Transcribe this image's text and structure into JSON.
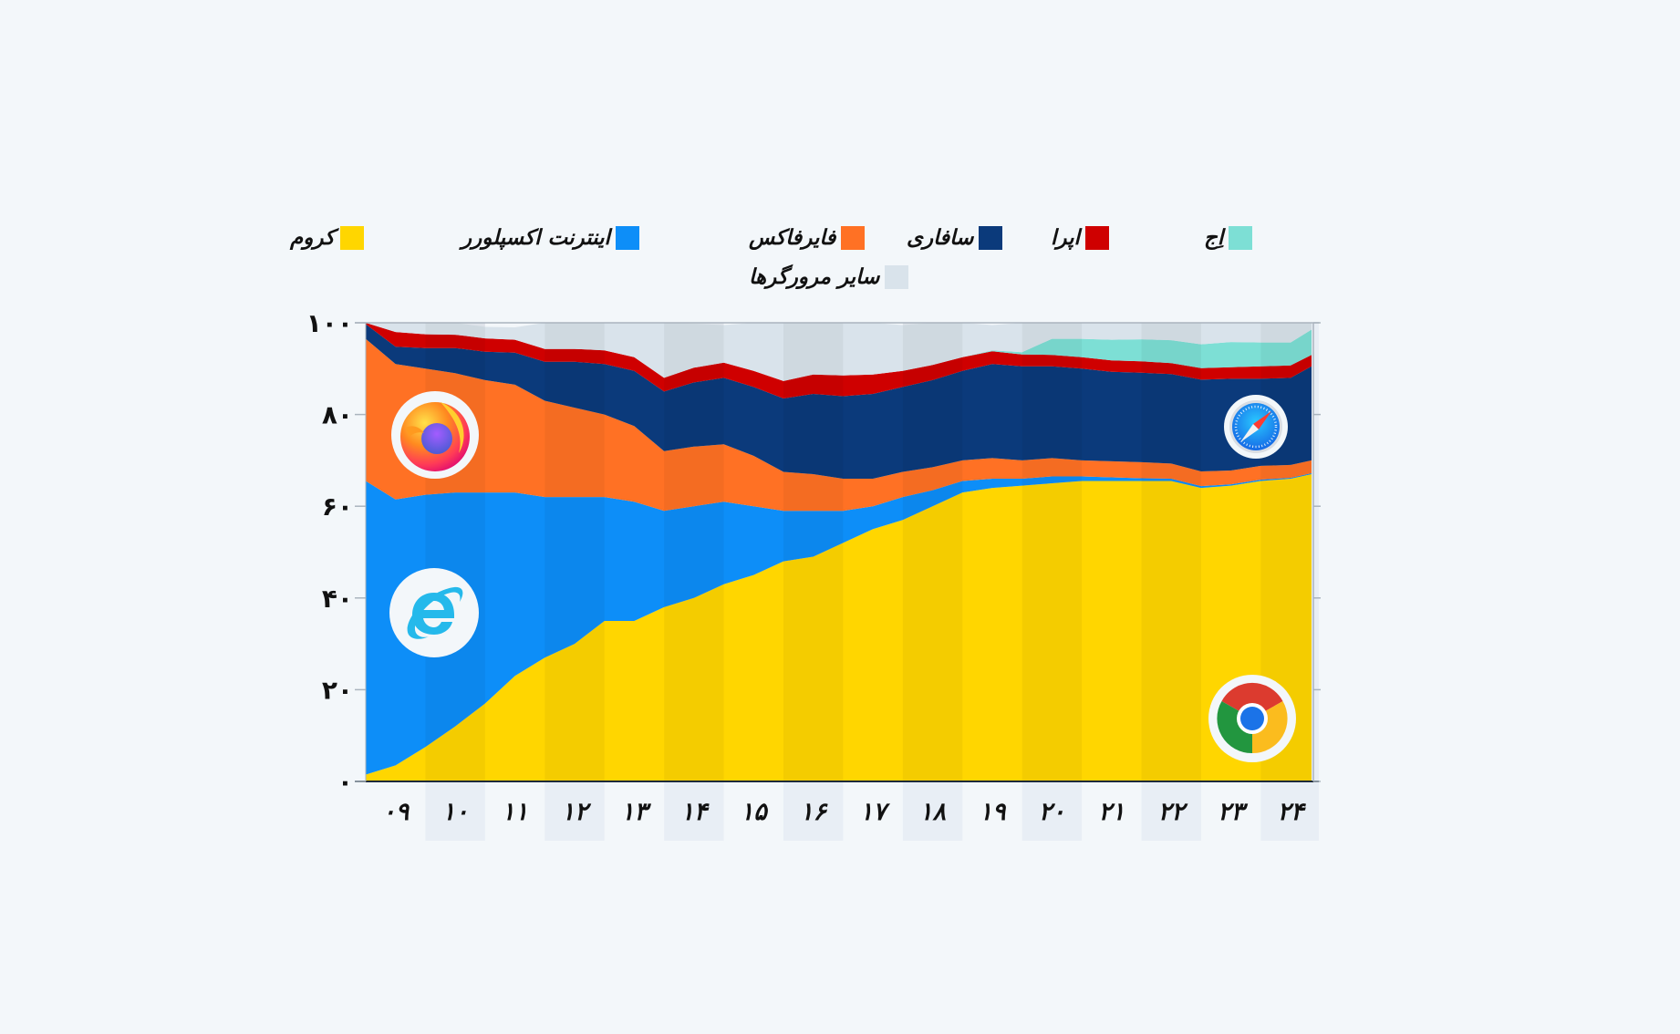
{
  "chart_data": {
    "type": "area",
    "stacked": true,
    "title": "",
    "xlabel": "",
    "ylabel": "",
    "ylim": [
      0,
      100
    ],
    "yticks": [
      "۰",
      "۲۰",
      "۴۰",
      "۶۰",
      "۸۰",
      "۱۰۰"
    ],
    "ytick_values": [
      0,
      20,
      40,
      60,
      80,
      100
    ],
    "xticks": [
      "۰۹",
      "۱۰",
      "۱۱",
      "۱۲",
      "۱۳",
      "۱۴",
      "۱۵",
      "۱۶",
      "۱۷",
      "۱۸",
      "۱۹",
      "۲۰",
      "۲۱",
      "۲۲",
      "۲۳",
      "۲۴"
    ],
    "x": [
      2009.0,
      2009.5,
      2010.0,
      2010.5,
      2011.0,
      2011.5,
      2012.0,
      2012.5,
      2013.0,
      2013.5,
      2014.0,
      2014.5,
      2015.0,
      2015.5,
      2016.0,
      2016.5,
      2017.0,
      2017.5,
      2018.0,
      2018.5,
      2019.0,
      2019.5,
      2020.0,
      2020.5,
      2021.0,
      2021.5,
      2022.0,
      2022.5,
      2023.0,
      2023.5,
      2024.0,
      2024.5,
      2024.85
    ],
    "x_range": [
      2009.0,
      2024.85
    ],
    "legend_position": "top",
    "grid": false,
    "series": [
      {
        "name": "کروم",
        "key": "chrome",
        "color": "#ffd600",
        "values": [
          1.5,
          3.5,
          7.5,
          12,
          17,
          23,
          27,
          30,
          35,
          35,
          38,
          40,
          43,
          45,
          48,
          49,
          52,
          55,
          57,
          60,
          63,
          64,
          64.5,
          65,
          65.5,
          65.5,
          65.5,
          65.5,
          64,
          64.5,
          65.5,
          66,
          67
        ]
      },
      {
        "name": "اینترنت اکسپلورر",
        "key": "ie",
        "color": "#0d8ef8",
        "values": [
          64,
          58,
          55,
          51,
          46,
          40,
          35,
          32,
          27,
          26,
          21,
          20,
          18,
          15,
          11,
          10,
          7,
          5,
          5,
          3.5,
          2.5,
          2,
          1.5,
          1.5,
          1,
          0.8,
          0.6,
          0.5,
          0.4,
          0.3,
          0.3,
          0.2,
          0.2
        ]
      },
      {
        "name": "فایرفاکس",
        "key": "firefox",
        "color": "#ff7124",
        "values": [
          31,
          29.5,
          27.5,
          26,
          24.5,
          23.5,
          21,
          19.5,
          18,
          16.5,
          13,
          13,
          12.5,
          11,
          8.5,
          8,
          7,
          6,
          5.5,
          5,
          4.5,
          4.5,
          4,
          4,
          3.5,
          3.5,
          3.5,
          3.3,
          3.2,
          3,
          3,
          2.8,
          2.8
        ]
      },
      {
        "name": "سافاری",
        "key": "safari",
        "color": "#0b3a7b",
        "values": [
          3.2,
          3.8,
          4.5,
          5.5,
          6.2,
          7,
          8.5,
          10,
          11,
          12,
          13,
          14,
          14.5,
          15,
          16,
          17.5,
          18,
          18.5,
          18.5,
          19,
          19.5,
          20.5,
          20.5,
          20,
          20,
          19.5,
          19.5,
          19.5,
          20,
          20,
          19,
          19,
          20.5
        ]
      },
      {
        "name": "اپرا",
        "key": "opera",
        "color": "#cf0000",
        "values": [
          3.5,
          3.2,
          3,
          2.9,
          2.9,
          2.8,
          2.8,
          2.8,
          3,
          3,
          3,
          3.2,
          3.3,
          3.5,
          3.8,
          4.2,
          4.5,
          4.2,
          3.5,
          3.3,
          3,
          2.8,
          2.6,
          2.5,
          2.5,
          2.5,
          2.5,
          2.4,
          2.5,
          2.5,
          2.7,
          2.7,
          2.5
        ]
      },
      {
        "name": "اِج",
        "key": "edge",
        "color": "#7ddfd5",
        "values": [
          0,
          0,
          0,
          0,
          0,
          0,
          0,
          0,
          0,
          0,
          0,
          0,
          0,
          0,
          0,
          0,
          0,
          0,
          0,
          0,
          0,
          0.2,
          0.5,
          3.5,
          4,
          4.5,
          4.8,
          5,
          5.2,
          5.5,
          5.2,
          5,
          5.5
        ]
      },
      {
        "name": "سایر مرورگرها",
        "key": "other",
        "color": "#d9e3eb",
        "values": [
          -3.2,
          2.0,
          2.5,
          2.6,
          2.5,
          2.7,
          5.7,
          5.7,
          6.0,
          7.5,
          12.0,
          9.6,
          8.2,
          10.5,
          12.7,
          11.3,
          11.5,
          11.3,
          10.0,
          9.2,
          7.5,
          5.5,
          6.4,
          3.5,
          3.5,
          3.7,
          3.9,
          3.8,
          4.7,
          4.2,
          4.3,
          4.3,
          1.5
        ]
      }
    ]
  },
  "legend": [
    {
      "label": "کروم",
      "color": "#ffd600"
    },
    {
      "label": "اینترنت اکسپلورر",
      "color": "#0d8ef8"
    },
    {
      "label": "فایرفاکس",
      "color": "#ff7124"
    },
    {
      "label": "سافاری",
      "color": "#0b3a7b"
    },
    {
      "label": "اپرا",
      "color": "#cf0000"
    },
    {
      "label": "اِج",
      "color": "#7ddfd5"
    },
    {
      "label": "سایر مرورگرها",
      "color": "#d9e3eb"
    }
  ],
  "logos": [
    "firefox-logo",
    "internet-explorer-logo",
    "safari-logo",
    "chrome-logo"
  ]
}
